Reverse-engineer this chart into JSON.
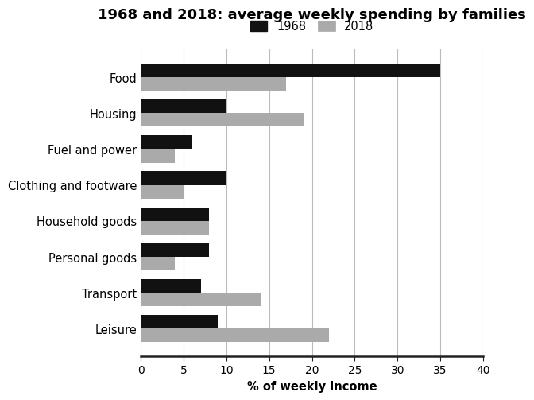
{
  "title": "1968 and 2018: average weekly spending by families",
  "xlabel": "% of weekly income",
  "categories": [
    "Food",
    "Housing",
    "Fuel and power",
    "Clothing and footware",
    "Household goods",
    "Personal goods",
    "Transport",
    "Leisure"
  ],
  "values_1968": [
    35,
    10,
    6,
    10,
    8,
    8,
    7,
    9
  ],
  "values_2018": [
    17,
    19,
    4,
    5,
    8,
    4,
    14,
    22
  ],
  "color_1968": "#111111",
  "color_2018": "#aaaaaa",
  "xlim": [
    0,
    40
  ],
  "xticks": [
    0,
    5,
    10,
    15,
    20,
    25,
    30,
    35,
    40
  ],
  "legend_labels": [
    "1968",
    "2018"
  ],
  "bar_height": 0.38,
  "grid_color": "#bbbbbb",
  "background_color": "#ffffff",
  "title_fontsize": 13,
  "label_fontsize": 10.5,
  "tick_fontsize": 10
}
